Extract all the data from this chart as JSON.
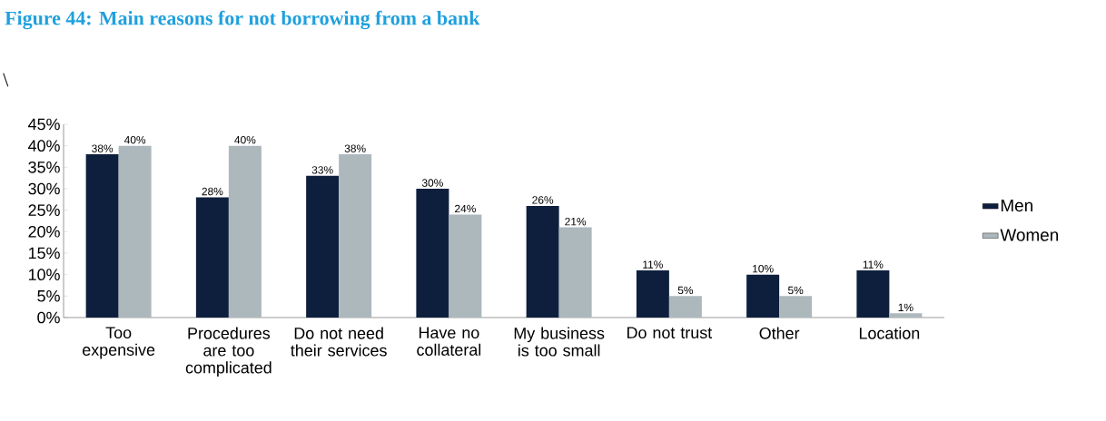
{
  "chart_data": {
    "type": "bar",
    "title": "Figure 44: Main reasons for not borrowing from a bank",
    "annotations": [
      "\\"
    ],
    "categories": [
      "Too expensive",
      "Procedures are too complicated",
      "Do not need their services",
      "Have no collateral",
      "My business is too small",
      "Do not trust",
      "Other",
      "Location"
    ],
    "series": [
      {
        "name": "Men",
        "color": "#0e1f3e",
        "values": [
          38,
          28,
          33,
          30,
          26,
          11,
          10,
          11
        ],
        "value_labels": [
          "38%",
          "28%",
          "33%",
          "30%",
          "26%",
          "11%",
          "10%",
          "11%"
        ]
      },
      {
        "name": "Women",
        "color": "#adb8bd",
        "values": [
          40,
          40,
          38,
          24,
          21,
          5,
          5,
          1
        ],
        "value_labels": [
          "40%",
          "40%",
          "38%",
          "24%",
          "21%",
          "5%",
          "5%",
          "1%"
        ]
      }
    ],
    "ylim": [
      0,
      45
    ],
    "yticks": [
      {
        "value": 0,
        "label": "0%"
      },
      {
        "value": 5,
        "label": "5%"
      },
      {
        "value": 10,
        "label": "10%"
      },
      {
        "value": 15,
        "label": "15%"
      },
      {
        "value": 20,
        "label": "20%"
      },
      {
        "value": 25,
        "label": "25%"
      },
      {
        "value": 30,
        "label": "30%"
      },
      {
        "value": 35,
        "label": "35%"
      },
      {
        "value": 40,
        "label": "40%"
      },
      {
        "value": 45,
        "label": "45%"
      }
    ],
    "grid": false,
    "legend": "right"
  }
}
